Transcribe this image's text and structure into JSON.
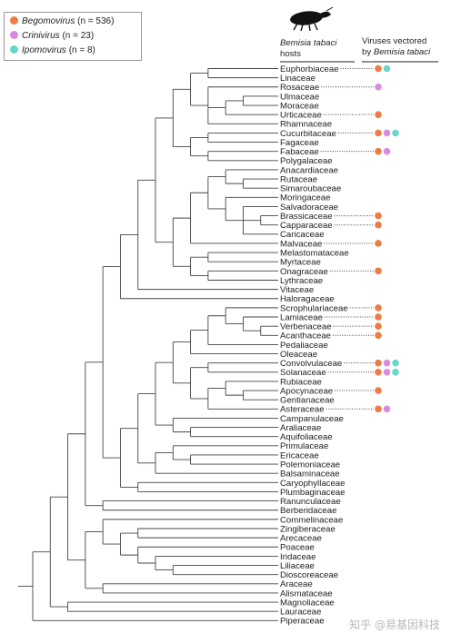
{
  "legend": [
    {
      "genus": "Begomovirus",
      "n": "(n = 536)",
      "color": "#ee7c44"
    },
    {
      "genus": "Crinivirus",
      "n": "(n = 23)",
      "color": "#d98be0"
    },
    {
      "genus": "Ipomovirus",
      "n": "(n = 8)",
      "color": "#69d5cc"
    }
  ],
  "header": {
    "hosts_line1": "Bemisia tabaci",
    "hosts_line2": "hosts",
    "viruses_line1": "Viruses vectored",
    "viruses_line2_prefix": "by ",
    "viruses_line2_species": "Bemisia tabaci"
  },
  "whitefly_icon": "whitefly-silhouette",
  "families": [
    {
      "name": "Euphorbiaceae",
      "viruses": [
        "B",
        "I"
      ]
    },
    {
      "name": "Linaceae",
      "viruses": []
    },
    {
      "name": "Rosaceae",
      "viruses": [
        "C"
      ]
    },
    {
      "name": "Ulmaceae",
      "viruses": []
    },
    {
      "name": "Moraceae",
      "viruses": []
    },
    {
      "name": "Urticaceae",
      "viruses": [
        "B"
      ]
    },
    {
      "name": "Rhamnaceae",
      "viruses": []
    },
    {
      "name": "Cucurbitaceae",
      "viruses": [
        "B",
        "C",
        "I"
      ]
    },
    {
      "name": "Fagaceae",
      "viruses": []
    },
    {
      "name": "Fabaceae",
      "viruses": [
        "B",
        "C"
      ]
    },
    {
      "name": "Polygalaceae",
      "viruses": []
    },
    {
      "name": "Anacardiaceae",
      "viruses": []
    },
    {
      "name": "Rutaceae",
      "viruses": []
    },
    {
      "name": "Simaroubaceae",
      "viruses": []
    },
    {
      "name": "Moringaceae",
      "viruses": []
    },
    {
      "name": "Salvadoraceae",
      "viruses": []
    },
    {
      "name": "Brassicaceae",
      "viruses": [
        "B"
      ]
    },
    {
      "name": "Capparaceae",
      "viruses": [
        "B"
      ]
    },
    {
      "name": "Caricaceae",
      "viruses": []
    },
    {
      "name": "Malvaceae",
      "viruses": [
        "B"
      ]
    },
    {
      "name": "Melastomataceae",
      "viruses": []
    },
    {
      "name": "Myrtaceae",
      "viruses": []
    },
    {
      "name": "Onagraceae",
      "viruses": [
        "B"
      ]
    },
    {
      "name": "Lythraceae",
      "viruses": []
    },
    {
      "name": "Vitaceae",
      "viruses": []
    },
    {
      "name": "Haloragaceae",
      "viruses": []
    },
    {
      "name": "Scrophulariaceae",
      "viruses": [
        "B"
      ]
    },
    {
      "name": "Lamiaceae",
      "viruses": [
        "B"
      ]
    },
    {
      "name": "Verbenaceae",
      "viruses": [
        "B"
      ]
    },
    {
      "name": "Acanthaceae",
      "viruses": [
        "B"
      ]
    },
    {
      "name": "Pedaliaceae",
      "viruses": []
    },
    {
      "name": "Oleaceae",
      "viruses": []
    },
    {
      "name": "Convolvulaceae",
      "viruses": [
        "B",
        "C",
        "I"
      ]
    },
    {
      "name": "Solanaceae",
      "viruses": [
        "B",
        "C",
        "I"
      ]
    },
    {
      "name": "Rubiaceae",
      "viruses": []
    },
    {
      "name": "Apocynaceae",
      "viruses": [
        "B"
      ]
    },
    {
      "name": "Gentianaceae",
      "viruses": []
    },
    {
      "name": "Asteraceae",
      "viruses": [
        "B",
        "C"
      ]
    },
    {
      "name": "Campanulaceae",
      "viruses": []
    },
    {
      "name": "Araliaceae",
      "viruses": []
    },
    {
      "name": "Aquifoliaceae",
      "viruses": []
    },
    {
      "name": "Primulaceae",
      "viruses": []
    },
    {
      "name": "Ericaceae",
      "viruses": []
    },
    {
      "name": "Polemoniaceae",
      "viruses": []
    },
    {
      "name": "Balsaminaceae",
      "viruses": []
    },
    {
      "name": "Caryophyllaceae",
      "viruses": []
    },
    {
      "name": "Plumbaginaceae",
      "viruses": []
    },
    {
      "name": "Ranunculaceae",
      "viruses": []
    },
    {
      "name": "Berberidaceae",
      "viruses": []
    },
    {
      "name": "Commelinaceae",
      "viruses": []
    },
    {
      "name": "Zingiberaceae",
      "viruses": []
    },
    {
      "name": "Arecaceae",
      "viruses": []
    },
    {
      "name": "Poaceae",
      "viruses": []
    },
    {
      "name": "Iridaceae",
      "viruses": []
    },
    {
      "name": "Liliaceae",
      "viruses": []
    },
    {
      "name": "Dioscoreaceae",
      "viruses": []
    },
    {
      "name": "Araceae",
      "viruses": []
    },
    {
      "name": "Alismataceae",
      "viruses": []
    },
    {
      "name": "Magnoliaceae",
      "viruses": []
    },
    {
      "name": "Lauraceae",
      "viruses": []
    },
    {
      "name": "Piperaceae",
      "viruses": []
    }
  ],
  "tree": [
    [
      [
        [
          [
            [
              [
                [
                  [
                    [
                      [
                        0,
                        1
                      ],
                      [
                        2,
                        [
                          [
                            3,
                            4
                          ],
                          5
                        ],
                        6
                      ]
                    ],
                    [
                      [
                        7,
                        8
                      ],
                      [
                        9,
                        10
                      ]
                    ]
                  ],
                  [
                    [
                      [
                        [
                          11,
                          [
                            12,
                            13
                          ]
                        ],
                        [
                          14,
                          [
                            15,
                            [
                              16,
                              17
                            ],
                            18
                          ]
                        ]
                      ],
                      19
                    ],
                    [
                      [
                        20,
                        21
                      ],
                      [
                        22,
                        23
                      ]
                    ]
                  ]
                ],
                24
              ],
              25
            ],
            [
              [
                [
                  [
                    [
                      [
                        [
                          26,
                          [
                            27,
                            [
                              28,
                              29
                            ]
                          ]
                        ],
                        30
                      ],
                      31
                    ],
                    [
                      [
                        32,
                        33
                      ],
                      [
                        [
                          34,
                          [
                            35,
                            36
                          ]
                        ],
                        37
                      ]
                    ]
                  ],
                  [
                    38,
                    [
                      39,
                      40
                    ]
                  ]
                ],
                [
                  [
                    41,
                    [
                      42,
                      43
                    ]
                  ],
                  44
                ]
              ],
              [
                45,
                46
              ]
            ]
          ],
          [
            47,
            48
          ]
        ],
        [
          [
            49,
            [
              [
                50,
                51
              ],
              [
                52,
                [
                  53,
                  [
                    54,
                    55
                  ]
                ]
              ]
            ]
          ],
          [
            56,
            57
          ]
        ]
      ],
      [
        58,
        59
      ]
    ],
    60
  ],
  "watermark": "知乎 @易基因科技"
}
